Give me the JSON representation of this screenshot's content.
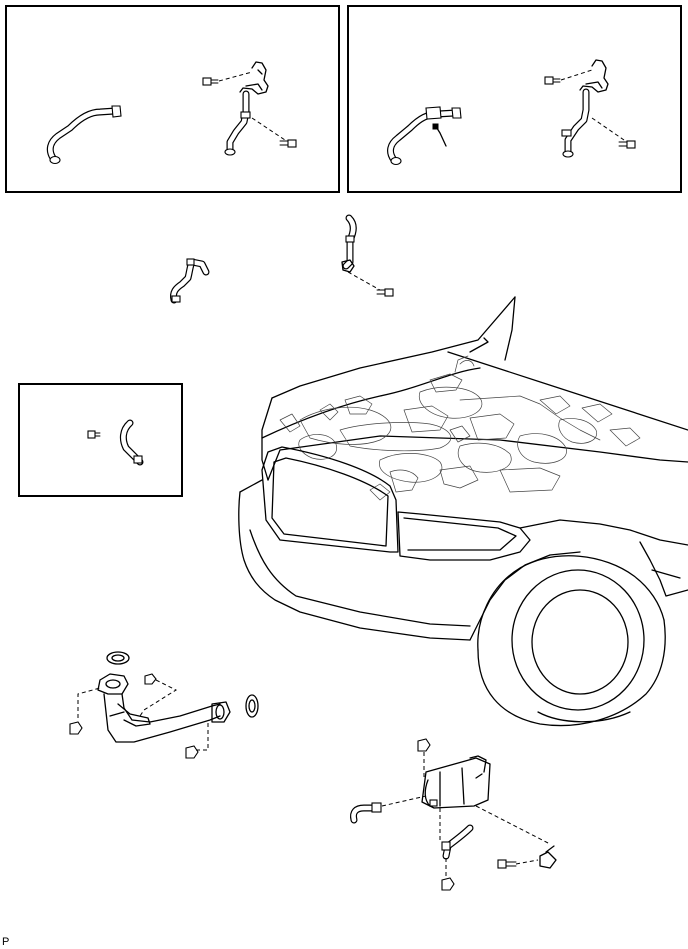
{
  "diagram": {
    "footer_code": "P"
  }
}
